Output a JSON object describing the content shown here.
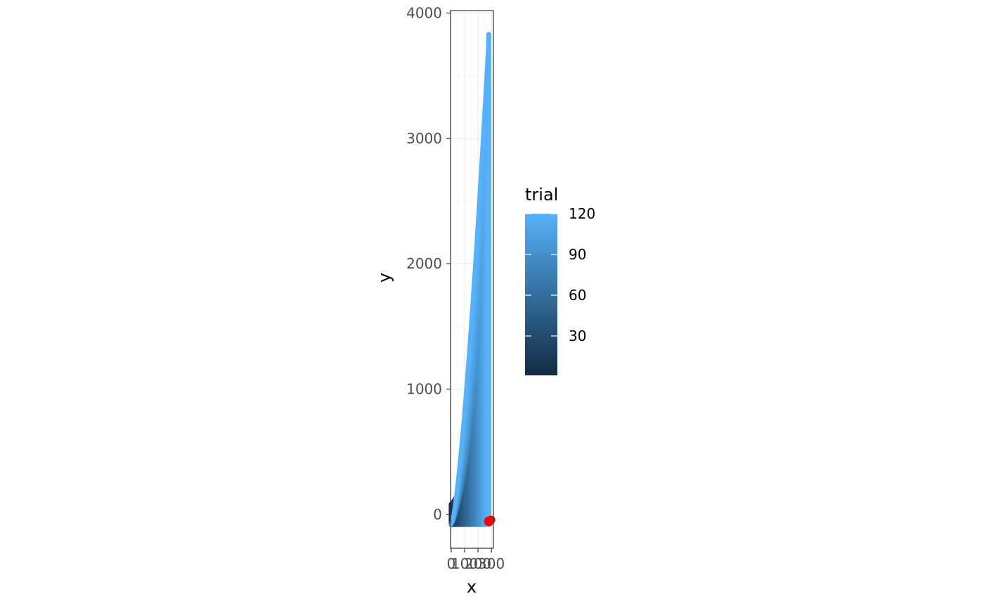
{
  "chart_data": {
    "type": "scatter",
    "title": "",
    "xlabel": "x",
    "ylabel": "y",
    "xlim": [
      -5,
      315
    ],
    "ylim": [
      -270,
      4020
    ],
    "x_ticks": [
      0,
      100,
      200,
      300
    ],
    "x_tick_labels": [
      "0",
      "100",
      "200",
      "300"
    ],
    "y_ticks": [
      0,
      1000,
      2000,
      3000,
      4000
    ],
    "y_tick_labels": [
      "0",
      "1000",
      "2000",
      "3000",
      "4000"
    ],
    "grid": true,
    "color_variable": "trial",
    "color_range": [
      1,
      120
    ],
    "color_low": "#132B43",
    "color_high": "#56B1F7",
    "legend": {
      "title": "trial",
      "placement": "right",
      "breaks": [
        30,
        60,
        90,
        120
      ],
      "labels": [
        "30",
        "60",
        "90",
        "120"
      ]
    },
    "trials": {
      "count": 120,
      "x_start": 0,
      "x_end": 280,
      "y_min": -80,
      "y_max_first": 80,
      "y_max_last": 3830
    },
    "highlight": {
      "x": 282,
      "y": -55,
      "color": "#FF0000"
    }
  }
}
